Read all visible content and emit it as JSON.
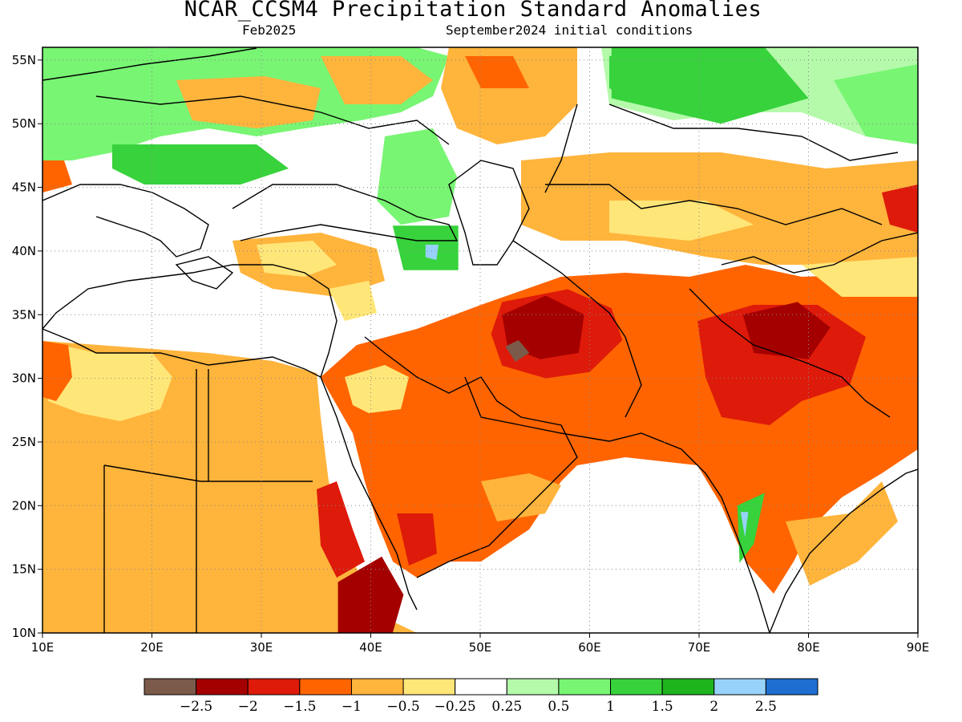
{
  "title": "NCAR_CCSM4 Precipitation Standard Anomalies",
  "valid_label": "Feb2025",
  "init_label": "September2024 initial conditions",
  "map": {
    "lon_range": [
      10,
      90
    ],
    "lat_range": [
      10,
      56
    ],
    "x_ticks": [
      "10E",
      "20E",
      "30E",
      "40E",
      "50E",
      "60E",
      "70E",
      "80E",
      "90E"
    ],
    "y_ticks": [
      "10N",
      "15N",
      "20N",
      "25N",
      "30N",
      "35N",
      "40N",
      "45N",
      "50N",
      "55N"
    ],
    "x_tick_values": [
      10,
      20,
      30,
      40,
      50,
      60,
      70,
      80,
      90
    ],
    "y_tick_values": [
      10,
      15,
      20,
      25,
      30,
      35,
      40,
      45,
      50,
      55
    ],
    "grid": "dotted"
  },
  "colorbar": {
    "colors": [
      "#7b5a4a",
      "#a50000",
      "#de1a0a",
      "#ff6400",
      "#ffb43c",
      "#ffe678",
      "#ffffff",
      "#b4faaa",
      "#78f573",
      "#37d23c",
      "#1eb41e",
      "#96d2fa",
      "#1e6ed2"
    ],
    "labels": [
      "−2.5",
      "−2",
      "−1.5",
      "−1",
      "−0.5",
      "−0.25",
      "0.25",
      "0.5",
      "1",
      "1.5",
      "2",
      "2.5"
    ]
  },
  "regions": [
    {
      "name": "arabia-strong-dry",
      "color": "#de1a0a",
      "pts": [
        [
          52,
          36
        ],
        [
          58,
          37
        ],
        [
          62,
          35.5
        ],
        [
          63,
          33
        ],
        [
          60,
          30.5
        ],
        [
          56,
          30
        ],
        [
          52,
          31
        ],
        [
          51,
          33.5
        ]
      ]
    },
    {
      "name": "iran-core-very-dry",
      "color": "#a50000",
      "pts": [
        [
          52,
          35
        ],
        [
          56,
          36.5
        ],
        [
          59.5,
          35
        ],
        [
          59,
          32
        ],
        [
          55.5,
          31.5
        ],
        [
          52.5,
          32.5
        ]
      ]
    },
    {
      "name": "iran-extreme-dry",
      "color": "#7b5a4a",
      "pts": [
        [
          52.3,
          32.5
        ],
        [
          53.5,
          33
        ],
        [
          54.5,
          32
        ],
        [
          53.2,
          31.3
        ]
      ]
    },
    {
      "name": "pakistan-india-very-dry",
      "color": "#a50000",
      "pts": [
        [
          74,
          35
        ],
        [
          79,
          36
        ],
        [
          82,
          34
        ],
        [
          80,
          31.5
        ],
        [
          75,
          32
        ]
      ]
    },
    {
      "name": "sudan-ethiopia-very-dry",
      "color": "#a50000",
      "pts": [
        [
          37,
          14
        ],
        [
          41,
          16
        ],
        [
          43,
          13
        ],
        [
          42,
          10
        ],
        [
          37,
          10
        ]
      ]
    },
    {
      "name": "india-wet-strip",
      "color": "#37d23c",
      "pts": [
        [
          73.5,
          20
        ],
        [
          76,
          21
        ],
        [
          75,
          17
        ],
        [
          73.7,
          15.5
        ]
      ]
    },
    {
      "name": "india-very-wet",
      "color": "#96d2fa",
      "pts": [
        [
          73.8,
          19.5
        ],
        [
          74.5,
          19.5
        ],
        [
          74.2,
          17.5
        ]
      ]
    },
    {
      "name": "caucasus-wet",
      "color": "#37d23c",
      "pts": [
        [
          42,
          42
        ],
        [
          48,
          42
        ],
        [
          48,
          38.5
        ],
        [
          43,
          38.5
        ]
      ]
    },
    {
      "name": "armenia-very-wet",
      "color": "#96d2fa",
      "pts": [
        [
          45,
          40.5
        ],
        [
          46.2,
          40.5
        ],
        [
          46,
          39.3
        ],
        [
          45,
          39.5
        ]
      ]
    },
    {
      "name": "kazakh-wet",
      "color": "#37d23c",
      "pts": [
        [
          62,
          56
        ],
        [
          76,
          56
        ],
        [
          80,
          52
        ],
        [
          72,
          50
        ],
        [
          62,
          52
        ]
      ]
    }
  ]
}
